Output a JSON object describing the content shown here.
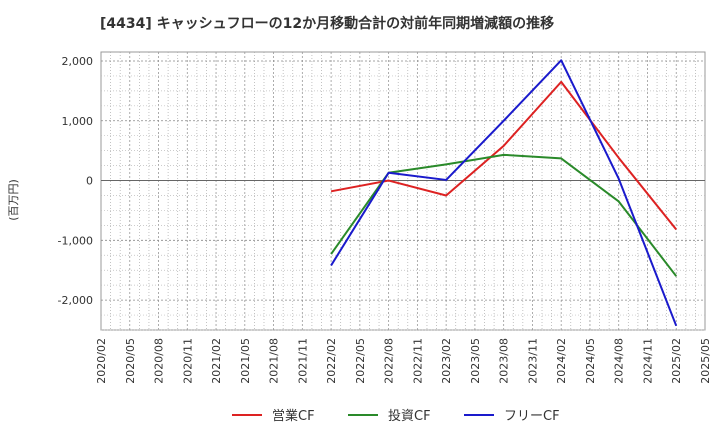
{
  "chart_data": {
    "type": "line",
    "title": "[4434]  キャッシュフローの12か月移動合計の対前年同期増減額の推移",
    "ylabel": "(百万円)",
    "xlabel": "",
    "ylim": [
      -2500,
      2150
    ],
    "yticks": [
      2000,
      1000,
      0,
      -1000,
      -2000
    ],
    "ytick_labels": [
      "2,000",
      "1,000",
      "0",
      "-1,000",
      "-2,000"
    ],
    "x_categories": [
      "2020/02",
      "2020/05",
      "2020/08",
      "2020/11",
      "2021/02",
      "2021/05",
      "2021/08",
      "2021/11",
      "2022/02",
      "2022/05",
      "2022/08",
      "2022/11",
      "2023/02",
      "2023/05",
      "2023/08",
      "2023/11",
      "2024/02",
      "2024/05",
      "2024/08",
      "2024/11",
      "2025/02",
      "2025/05"
    ],
    "grid": true,
    "legend_position": "bottom",
    "series": [
      {
        "name": "営業CF",
        "color": "#dd2222",
        "points": [
          [
            "2022/02",
            -180
          ],
          [
            "2022/08",
            0
          ],
          [
            "2023/02",
            -250
          ],
          [
            "2023/08",
            580
          ],
          [
            "2024/02",
            1650
          ],
          [
            "2024/08",
            380
          ],
          [
            "2025/02",
            -820
          ]
        ]
      },
      {
        "name": "投資CF",
        "color": "#2a8a2a",
        "points": [
          [
            "2022/02",
            -1230
          ],
          [
            "2022/08",
            130
          ],
          [
            "2023/02",
            270
          ],
          [
            "2023/08",
            430
          ],
          [
            "2024/02",
            370
          ],
          [
            "2024/08",
            -350
          ],
          [
            "2025/02",
            -1600
          ]
        ]
      },
      {
        "name": "フリーCF",
        "color": "#1a1acc",
        "points": [
          [
            "2022/02",
            -1420
          ],
          [
            "2022/08",
            130
          ],
          [
            "2023/02",
            10
          ],
          [
            "2023/08",
            1000
          ],
          [
            "2024/02",
            2010
          ],
          [
            "2024/08",
            30
          ],
          [
            "2025/02",
            -2430
          ]
        ]
      }
    ]
  }
}
